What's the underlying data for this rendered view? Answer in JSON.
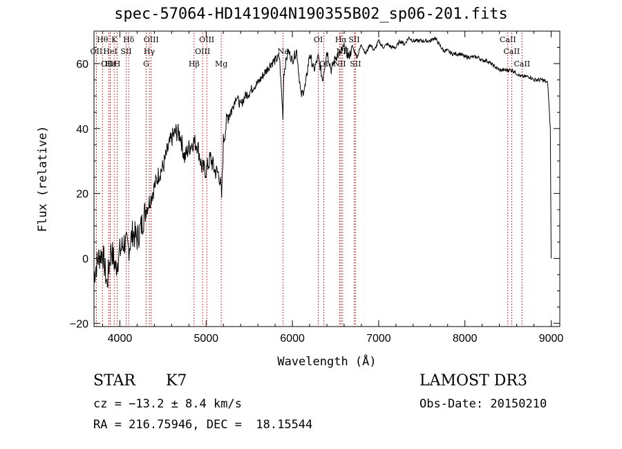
{
  "chart_data": {
    "type": "line",
    "title": "spec-57064-HD141904N190355B02_sp06-201.fits",
    "xlabel": "Wavelength (Å)",
    "ylabel": "Flux (relative)",
    "xlim": [
      3700,
      9100
    ],
    "ylim": [
      -21,
      70
    ],
    "x_ticks": [
      4000,
      5000,
      6000,
      7000,
      8000,
      9000
    ],
    "y_ticks": [
      -20,
      0,
      20,
      40,
      60
    ],
    "x_tick_labels": [
      "4000",
      "5000",
      "6000",
      "7000",
      "8000",
      "9000"
    ],
    "y_tick_labels": [
      "−20",
      "0",
      "20",
      "40",
      "60"
    ],
    "series": [
      {
        "name": "flux",
        "x": [
          3700,
          3750,
          3800,
          3850,
          3900,
          3950,
          4000,
          4050,
          4100,
          4150,
          4200,
          4250,
          4300,
          4350,
          4400,
          4450,
          4500,
          4550,
          4600,
          4650,
          4700,
          4750,
          4800,
          4850,
          4900,
          4950,
          5000,
          5050,
          5100,
          5150,
          5180,
          5200,
          5250,
          5300,
          5350,
          5400,
          5450,
          5500,
          5550,
          5600,
          5650,
          5700,
          5750,
          5800,
          5850,
          5890,
          5900,
          5950,
          6000,
          6050,
          6100,
          6150,
          6200,
          6250,
          6300,
          6350,
          6400,
          6450,
          6500,
          6550,
          6600,
          6650,
          6700,
          6750,
          6800,
          6850,
          6900,
          6950,
          7000,
          7050,
          7100,
          7150,
          7200,
          7250,
          7300,
          7350,
          7400,
          7450,
          7500,
          7550,
          7600,
          7650,
          7700,
          7750,
          7800,
          7850,
          7900,
          7950,
          8000,
          8050,
          8100,
          8150,
          8200,
          8250,
          8300,
          8350,
          8400,
          8450,
          8500,
          8550,
          8600,
          8650,
          8700,
          8750,
          8800,
          8850,
          8900,
          8960,
          8990,
          9000
        ],
        "y": [
          -5,
          0,
          2,
          -8,
          3,
          -3,
          2,
          5,
          3,
          8,
          6,
          10,
          15,
          18,
          22,
          26,
          28,
          33,
          37,
          39,
          38,
          31,
          34,
          36,
          35,
          28,
          27,
          31,
          27,
          26,
          19,
          36,
          44,
          46,
          50,
          47,
          50,
          51,
          53,
          54,
          56,
          58,
          60,
          61,
          62,
          44,
          57,
          64,
          61,
          64,
          50,
          53,
          63,
          58,
          62,
          55,
          64,
          58,
          62,
          63,
          65,
          62,
          65,
          62,
          66,
          63,
          66,
          64,
          67,
          65,
          66,
          65,
          65,
          67,
          66,
          68,
          67,
          67,
          67,
          67,
          67,
          68,
          66,
          64,
          64,
          63,
          63,
          63,
          62,
          62,
          62,
          62,
          61,
          61,
          60,
          59,
          58,
          58,
          58,
          58,
          57,
          56,
          56,
          56,
          55,
          55,
          55,
          54,
          40,
          0
        ]
      }
    ],
    "line_markers": [
      {
        "label": "Hθ",
        "x": 3798,
        "row": 1
      },
      {
        "label": "OII",
        "x": 3727,
        "row": 2
      },
      {
        "label": "OIII",
        "x": 3870,
        "row": 3
      },
      {
        "label": "HeI",
        "x": 3889,
        "row": 2
      },
      {
        "label": "Hε",
        "x": 3890,
        "row": 3
      },
      {
        "label": "K",
        "x": 3934,
        "row": 1
      },
      {
        "label": "H",
        "x": 3969,
        "row": 3
      },
      {
        "label": "Hδ",
        "x": 4102,
        "row": 1
      },
      {
        "label": "SII",
        "x": 4072,
        "row": 2
      },
      {
        "label": "OIII",
        "x": 4363,
        "row": 1
      },
      {
        "label": "Hγ",
        "x": 4341,
        "row": 2
      },
      {
        "label": "G",
        "x": 4305,
        "row": 3
      },
      {
        "label": "Hβ",
        "x": 4861,
        "row": 3
      },
      {
        "label": "OIII",
        "x": 5007,
        "row": 1
      },
      {
        "label": "OIII",
        "x": 4959,
        "row": 2
      },
      {
        "label": "Mg",
        "x": 5175,
        "row": 3
      },
      {
        "label": "Na",
        "x": 5893,
        "row": 2
      },
      {
        "label": "OI",
        "x": 6300,
        "row": 1
      },
      {
        "label": "OI",
        "x": 6364,
        "row": 3
      },
      {
        "label": "Hα",
        "x": 6563,
        "row": 1
      },
      {
        "label": "NII",
        "x": 6548,
        "row": 3
      },
      {
        "label": "SII",
        "x": 6716,
        "row": 1
      },
      {
        "label": "SII",
        "x": 6731,
        "row": 3
      },
      {
        "label": "NII",
        "x": 6583,
        "row": 2
      },
      {
        "label": "CaII",
        "x": 8498,
        "row": 1
      },
      {
        "label": "CaII",
        "x": 8542,
        "row": 2
      },
      {
        "label": "CaII",
        "x": 8662,
        "row": 3
      }
    ]
  },
  "info": {
    "object_class": "STAR",
    "subclass": "K7",
    "survey": "LAMOST DR3",
    "cz": "cz = −13.2 ± 8.4 km/s",
    "obs_date": "Obs-Date: 20150210",
    "coords": "RA = 216.75946, DEC =  18.15544"
  }
}
